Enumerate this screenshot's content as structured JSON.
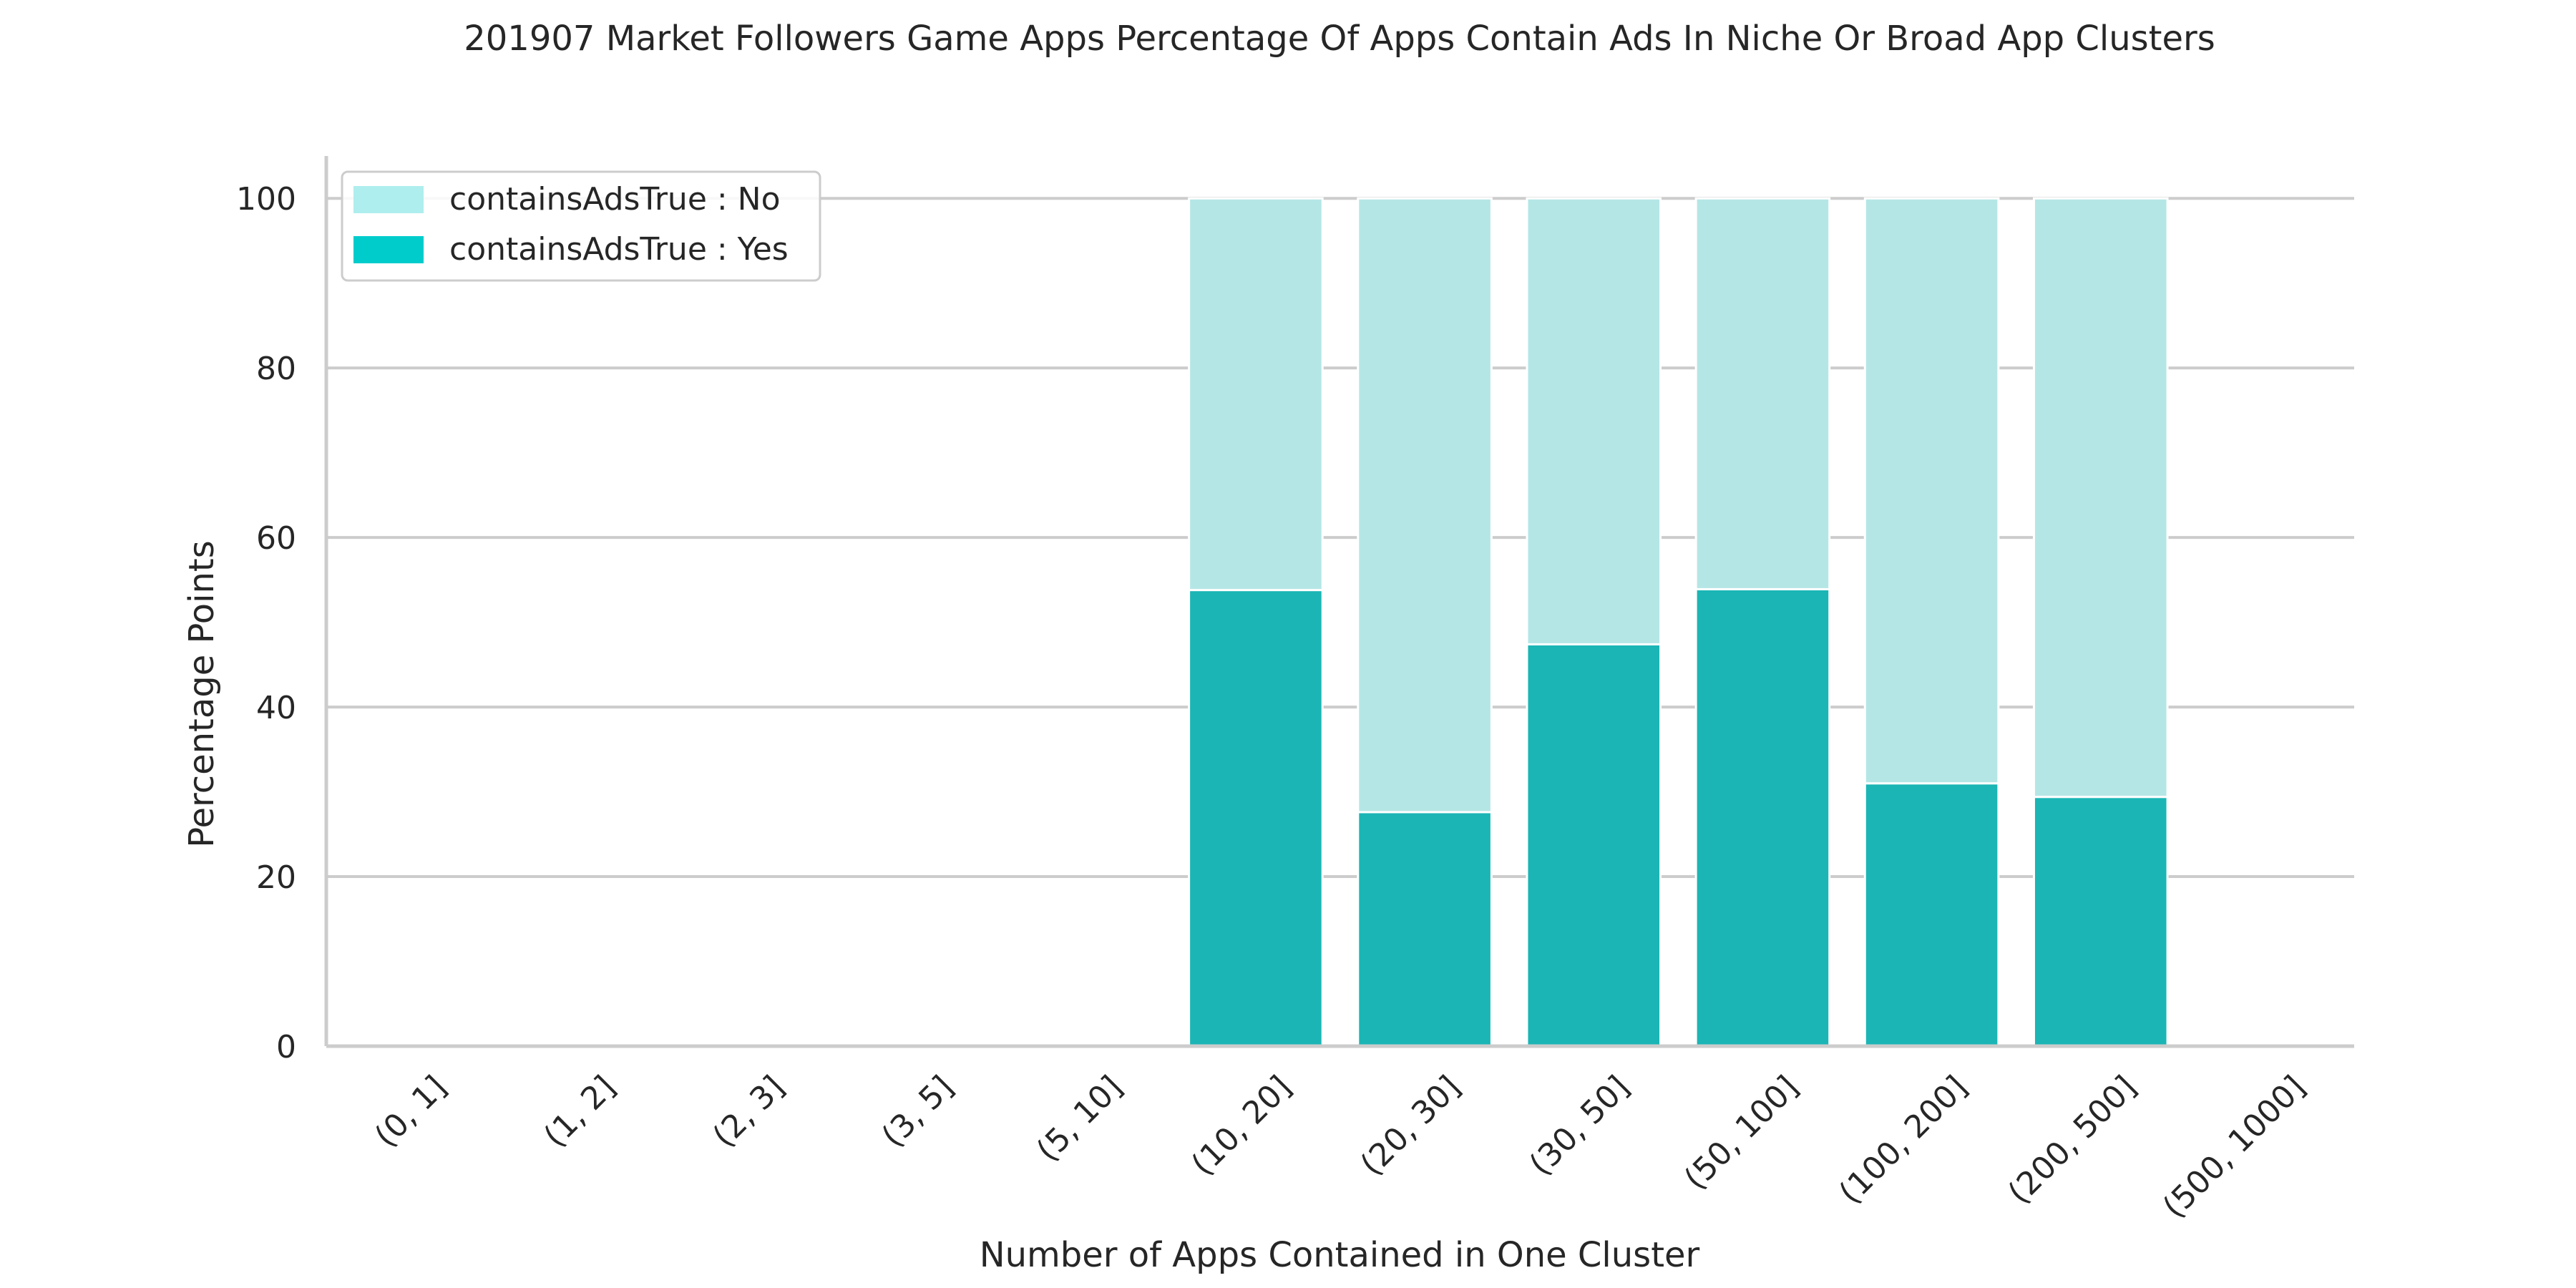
{
  "chart_data": {
    "type": "bar",
    "stacked": true,
    "title": "201907 Market Followers Game Apps Percentage Of Apps Contain Ads In Niche Or Broad App Clusters",
    "xlabel": "Number of Apps Contained in One Cluster",
    "ylabel": "Percentage Points",
    "ylim": [
      0,
      105
    ],
    "yticks": [
      0,
      20,
      40,
      60,
      80,
      100
    ],
    "grid": true,
    "legend_position": "top-left",
    "categories": [
      "(0, 1]",
      "(1, 2]",
      "(2, 3]",
      "(3, 5]",
      "(5, 10]",
      "(10, 20]",
      "(20, 30]",
      "(30, 50]",
      "(50, 100]",
      "(100, 200]",
      "(200, 500]",
      "(500, 1000]"
    ],
    "series": [
      {
        "name": "containsAdsTrue : Yes",
        "color": "#1bb5b5",
        "legend_color": "#00cccc",
        "values": [
          0,
          0,
          0,
          0,
          0,
          53.8,
          27.6,
          47.4,
          53.9,
          31.0,
          29.4,
          0
        ]
      },
      {
        "name": "containsAdsTrue : No",
        "color": "#b5e6e6",
        "legend_color": "#afeeee",
        "values": [
          0,
          0,
          0,
          0,
          0,
          46.2,
          72.4,
          52.6,
          46.1,
          69.0,
          70.6,
          0
        ]
      }
    ],
    "legend_order": [
      1,
      0
    ]
  }
}
